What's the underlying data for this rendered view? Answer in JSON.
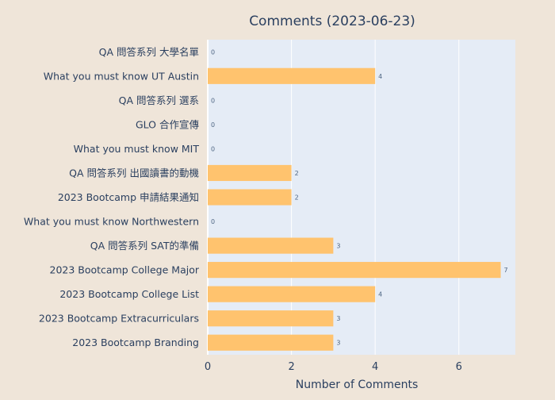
{
  "chart_data": {
    "type": "bar",
    "orientation": "horizontal",
    "title": "Comments (2023-06-23)",
    "xlabel": "Number of Comments",
    "ylabel": "",
    "xlim": [
      0,
      7.35
    ],
    "xticks": [
      0,
      2,
      4,
      6
    ],
    "grid": true,
    "legend": "none",
    "categories": [
      "QA 問答系列 大學名單",
      "What you must know UT Austin",
      "QA 問答系列 選系",
      "GLO 合作宣傳",
      "What you must know MIT",
      "QA 問答系列 出國讀書的動機",
      "2023 Bootcamp 申請結果通知",
      "What you must know Northwestern",
      "QA 問答系列 SAT的準備",
      "2023 Bootcamp College Major",
      "2023 Bootcamp College List",
      "2023 Bootcamp Extracurriculars",
      "2023 Bootcamp Branding"
    ],
    "values": [
      0,
      4,
      0,
      0,
      0,
      2,
      2,
      0,
      3,
      7,
      4,
      3,
      3
    ],
    "colors": {
      "bar": "#ffc36e",
      "plot_bg": "#e5ecf6",
      "paper_bg": "#efe5d9",
      "grid": "#ffffff",
      "text": "#2a3f5f",
      "label": "#506784"
    }
  }
}
